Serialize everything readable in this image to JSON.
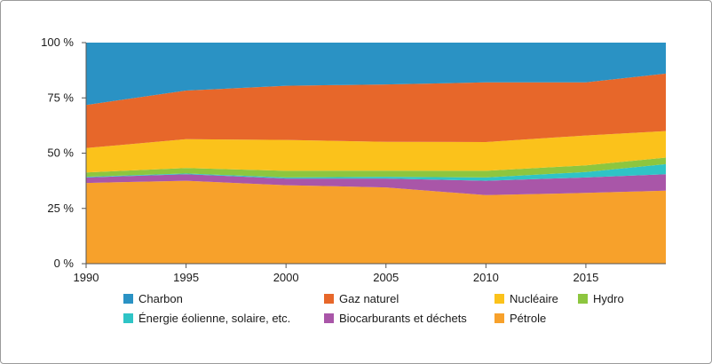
{
  "chart_data": {
    "type": "area",
    "stacked": true,
    "x": [
      1990,
      1995,
      2000,
      2005,
      2010,
      2015,
      2019
    ],
    "xticks": [
      "1990",
      "1995",
      "2000",
      "2005",
      "2010",
      "2015"
    ],
    "xlim": [
      1990,
      2019
    ],
    "ylim": [
      0,
      100
    ],
    "yticks": [
      "0 %",
      "25 %",
      "50 %",
      "75 %",
      "100 %"
    ],
    "grid": false,
    "legend_position": "bottom",
    "series": [
      {
        "name": "Pétrole",
        "color": "#f7a12b",
        "values": [
          36.5,
          37.5,
          35.5,
          34.5,
          31,
          32,
          33
        ]
      },
      {
        "name": "Biocarburants et déchets",
        "color": "#a956a8",
        "values": [
          2.5,
          3,
          3,
          4,
          6.5,
          7,
          7.5
        ]
      },
      {
        "name": "Énergie éolienne, solaire, etc.",
        "color": "#2fc4c6",
        "values": [
          0.3,
          0.3,
          0.5,
          0.8,
          1.5,
          2.5,
          4.5
        ]
      },
      {
        "name": "Hydro",
        "color": "#8dc63f",
        "values": [
          2,
          2.5,
          3,
          2.8,
          3,
          3,
          3
        ]
      },
      {
        "name": "Nucléaire",
        "color": "#fbc21b",
        "values": [
          11,
          13,
          14,
          13,
          13,
          13.5,
          12
        ]
      },
      {
        "name": "Gaz naturel",
        "color": "#e7672a",
        "values": [
          19.5,
          22,
          24.5,
          26,
          27,
          24,
          26
        ]
      },
      {
        "name": "Charbon",
        "color": "#2a92c4",
        "values": [
          28.2,
          21.7,
          19.5,
          18.9,
          18,
          18,
          14
        ]
      }
    ],
    "legend_order": [
      "Charbon",
      "Gaz naturel",
      "Nucléaire",
      "Hydro",
      "Énergie éolienne, solaire, etc.",
      "Biocarburants et déchets",
      "Pétrole"
    ]
  }
}
